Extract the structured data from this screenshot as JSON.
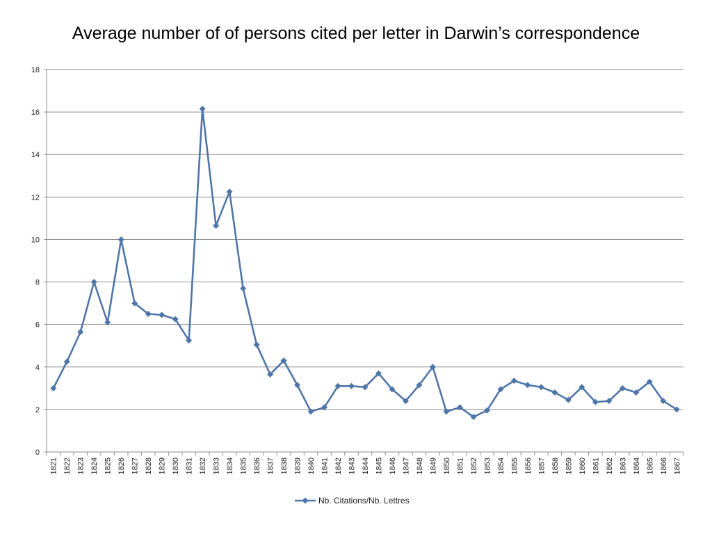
{
  "chart_data": {
    "type": "line",
    "title": "Average number of of persons cited per letter in Darwin’s correspondence",
    "xlabel": "",
    "ylabel": "",
    "ylim": [
      0,
      18
    ],
    "yticks": [
      0,
      2,
      4,
      6,
      8,
      10,
      12,
      14,
      16,
      18
    ],
    "grid": true,
    "legend_position": "bottom",
    "categories": [
      "1821",
      "1822",
      "1823",
      "1824",
      "1825",
      "1826",
      "1827",
      "1828",
      "1829",
      "1830",
      "1831",
      "1832",
      "1833",
      "1834",
      "1835",
      "1836",
      "1837",
      "1838",
      "1839",
      "1840",
      "1841",
      "1842",
      "1843",
      "1844",
      "1845",
      "1846",
      "1847",
      "1848",
      "1849",
      "1850",
      "1851",
      "1852",
      "1853",
      "1854",
      "1855",
      "1856",
      "1857",
      "1858",
      "1859",
      "1860",
      "1861",
      "1862",
      "1863",
      "1864",
      "1865",
      "1866",
      "1867"
    ],
    "series": [
      {
        "name": "Nb. Citations/Nb. Lettres",
        "color": "#4F76A8",
        "marker": "diamond",
        "values": [
          3.0,
          4.25,
          5.65,
          8.0,
          6.1,
          10.0,
          7.0,
          6.5,
          6.45,
          6.25,
          5.25,
          16.15,
          10.65,
          12.25,
          7.7,
          5.05,
          3.65,
          4.3,
          3.15,
          1.9,
          2.1,
          3.1,
          3.1,
          3.05,
          3.7,
          2.95,
          2.4,
          3.15,
          4.0,
          1.9,
          2.1,
          1.65,
          1.95,
          2.95,
          3.35,
          3.15,
          3.05,
          2.8,
          2.45,
          3.05,
          2.35,
          2.4,
          3.0,
          2.8,
          3.3,
          2.4,
          2.0
        ]
      }
    ]
  }
}
